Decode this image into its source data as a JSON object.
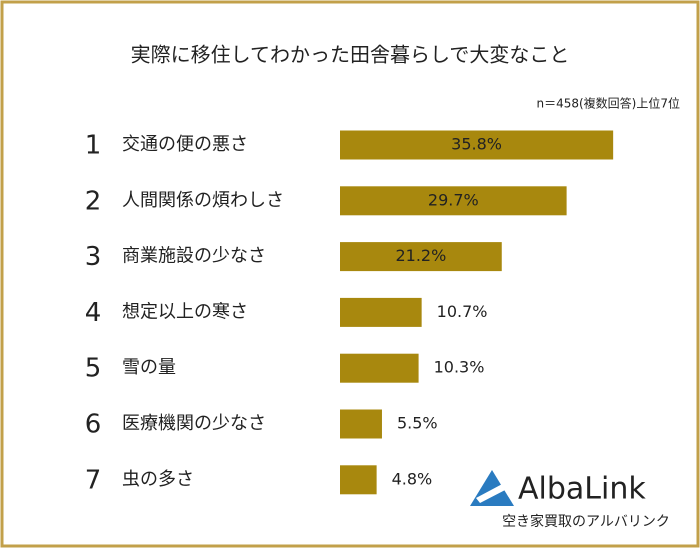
{
  "chart_data": {
    "type": "bar",
    "orientation": "horizontal",
    "title": "実際に移住してわかった田舎暮らしで大変なこと",
    "subtitle": "n＝458(複数回答)上位7位",
    "ranks": [
      "1",
      "2",
      "3",
      "4",
      "5",
      "6",
      "7"
    ],
    "categories": [
      "交通の便の悪さ",
      "人間関係の煩わしさ",
      "商業施設の少なさ",
      "想定以上の寒さ",
      "雪の量",
      "医療機関の少なさ",
      "虫の多さ"
    ],
    "values": [
      35.8,
      29.7,
      21.2,
      10.7,
      10.3,
      5.5,
      4.8
    ],
    "value_labels": [
      "35.8%",
      "29.7%",
      "21.2%",
      "10.7%",
      "10.3%",
      "5.5%",
      "4.8%"
    ],
    "color": "#a8880e"
  },
  "logo": {
    "name": "AlbaLink",
    "tagline": "空き家買取のアルバリンク"
  }
}
